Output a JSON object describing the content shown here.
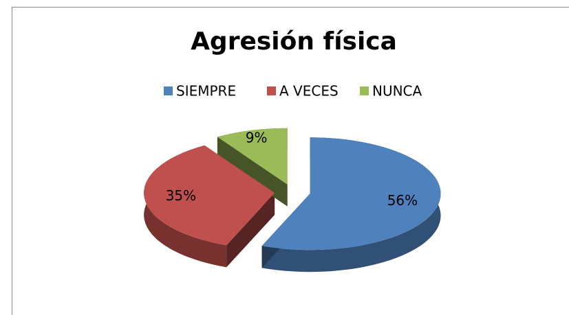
{
  "chart_data": {
    "type": "pie3d",
    "title": "Agresión física",
    "categories": [
      "SIEMPRE",
      "A VECES",
      "NUNCA"
    ],
    "values": [
      56,
      35,
      9
    ],
    "value_labels": [
      "56%",
      "35%",
      "9%"
    ],
    "colors": [
      "#4f81bd",
      "#c0504d",
      "#9bbb59"
    ],
    "legend": "top"
  }
}
